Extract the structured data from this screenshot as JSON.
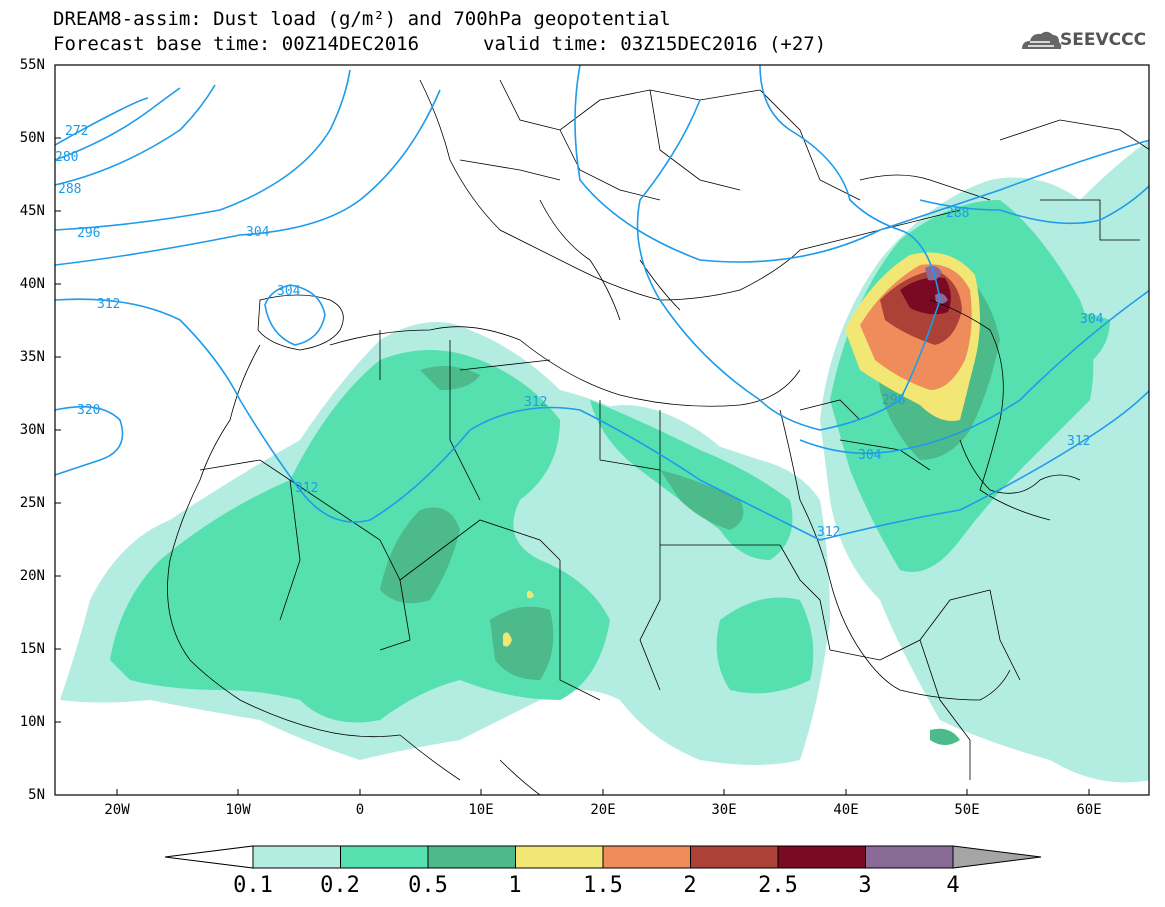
{
  "title": {
    "line1": "DREAM8-assim: Dust load (g/m²) and 700hPa geopotential",
    "line2": "Forecast base time: 00Z14DEC2016",
    "valid": "valid time: 03Z15DEC2016 (+27)"
  },
  "logo": {
    "text": "SEEVCCC",
    "icon": "cloud-icon"
  },
  "map": {
    "lat_labels": [
      "55N",
      "50N",
      "45N",
      "40N",
      "35N",
      "30N",
      "25N",
      "20N",
      "15N",
      "10N",
      "5N"
    ],
    "lon_labels": [
      "20W",
      "10W",
      "0",
      "10E",
      "20E",
      "30E",
      "40E",
      "50E",
      "60E"
    ],
    "contour_labels": [
      "272",
      "280",
      "288",
      "296",
      "304",
      "304",
      "312",
      "320",
      "312",
      "312",
      "312",
      "296",
      "304",
      "288",
      "304",
      "312"
    ]
  },
  "colorbar": {
    "labels": [
      "0.1",
      "0.2",
      "0.5",
      "1",
      "1.5",
      "2",
      "2.5",
      "3",
      "4"
    ],
    "colors": [
      "#b3ece1",
      "#56e0b0",
      "#4cba8a",
      "#f2e774",
      "#ef8c5b",
      "#ab4137",
      "#7a0a24",
      "#8a6a97",
      "#a5a5a5"
    ]
  },
  "colors": {
    "contour": "#1e9bea",
    "border": "#000000"
  }
}
